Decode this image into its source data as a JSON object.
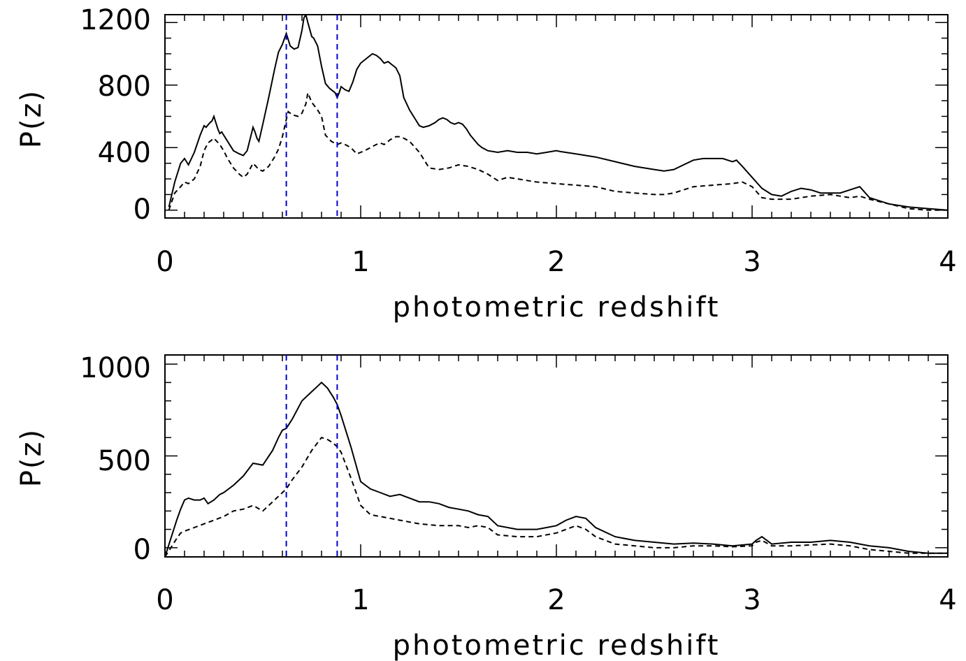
{
  "chart_data": [
    {
      "type": "line",
      "title": "",
      "xlabel": "photometric redshift",
      "ylabel": "P(z)",
      "xlim": [
        0,
        4
      ],
      "ylim": [
        -50,
        1250
      ],
      "xticks": [
        "0",
        "1",
        "2",
        "3",
        "4"
      ],
      "yticks": [
        "0",
        "400",
        "800",
        "1200"
      ],
      "vlines": [
        0.62,
        0.88
      ],
      "vline_color": "#0000cc",
      "series": [
        {
          "name": "solid",
          "style": "solid",
          "x": [
            0.02,
            0.05,
            0.08,
            0.1,
            0.12,
            0.15,
            0.18,
            0.2,
            0.21,
            0.23,
            0.24,
            0.25,
            0.26,
            0.27,
            0.28,
            0.29,
            0.3,
            0.32,
            0.35,
            0.38,
            0.4,
            0.42,
            0.44,
            0.45,
            0.46,
            0.47,
            0.48,
            0.5,
            0.53,
            0.56,
            0.58,
            0.6,
            0.62,
            0.63,
            0.64,
            0.66,
            0.68,
            0.7,
            0.71,
            0.72,
            0.73,
            0.75,
            0.76,
            0.78,
            0.8,
            0.82,
            0.84,
            0.86,
            0.87,
            0.88,
            0.89,
            0.9,
            0.92,
            0.94,
            0.96,
            0.98,
            1.0,
            1.02,
            1.04,
            1.06,
            1.08,
            1.1,
            1.12,
            1.14,
            1.16,
            1.18,
            1.2,
            1.22,
            1.25,
            1.28,
            1.3,
            1.32,
            1.35,
            1.38,
            1.4,
            1.42,
            1.44,
            1.46,
            1.48,
            1.5,
            1.52,
            1.54,
            1.56,
            1.58,
            1.6,
            1.62,
            1.65,
            1.7,
            1.75,
            1.8,
            1.85,
            1.9,
            1.95,
            2.0,
            2.02,
            2.1,
            2.15,
            2.2,
            2.3,
            2.4,
            2.5,
            2.55,
            2.6,
            2.65,
            2.7,
            2.75,
            2.8,
            2.85,
            2.9,
            2.92,
            2.95,
            3.0,
            3.05,
            3.1,
            3.15,
            3.2,
            3.25,
            3.3,
            3.35,
            3.4,
            3.45,
            3.5,
            3.55,
            3.6,
            3.7,
            3.8,
            3.9,
            4.0
          ],
          "y": [
            20,
            180,
            300,
            330,
            290,
            370,
            480,
            540,
            530,
            560,
            570,
            600,
            560,
            520,
            490,
            500,
            480,
            440,
            380,
            360,
            350,
            380,
            480,
            530,
            500,
            460,
            440,
            550,
            720,
            900,
            1010,
            1060,
            1130,
            1090,
            1050,
            1030,
            1040,
            1150,
            1230,
            1250,
            1200,
            1110,
            1100,
            1050,
            920,
            810,
            780,
            760,
            750,
            720,
            750,
            790,
            770,
            760,
            820,
            900,
            940,
            960,
            980,
            1000,
            990,
            970,
            940,
            950,
            930,
            910,
            860,
            720,
            640,
            580,
            540,
            530,
            540,
            560,
            580,
            590,
            580,
            560,
            550,
            560,
            550,
            520,
            480,
            450,
            420,
            400,
            380,
            370,
            380,
            370,
            370,
            360,
            370,
            380,
            375,
            360,
            350,
            340,
            310,
            280,
            260,
            250,
            260,
            290,
            320,
            330,
            330,
            330,
            310,
            320,
            280,
            210,
            140,
            100,
            90,
            120,
            140,
            130,
            110,
            110,
            110,
            130,
            150,
            80,
            40,
            20,
            10,
            0
          ]
        },
        {
          "name": "dashed",
          "style": "dashed",
          "x": [
            0.02,
            0.05,
            0.08,
            0.1,
            0.12,
            0.15,
            0.18,
            0.2,
            0.22,
            0.25,
            0.28,
            0.3,
            0.32,
            0.35,
            0.38,
            0.4,
            0.42,
            0.45,
            0.48,
            0.5,
            0.53,
            0.56,
            0.58,
            0.6,
            0.62,
            0.63,
            0.65,
            0.68,
            0.7,
            0.72,
            0.73,
            0.75,
            0.78,
            0.8,
            0.82,
            0.85,
            0.88,
            0.9,
            0.92,
            0.95,
            0.98,
            1.0,
            1.02,
            1.05,
            1.08,
            1.1,
            1.12,
            1.15,
            1.18,
            1.2,
            1.22,
            1.25,
            1.3,
            1.35,
            1.4,
            1.45,
            1.5,
            1.55,
            1.6,
            1.65,
            1.7,
            1.75,
            1.8,
            1.85,
            1.9,
            2.0,
            2.1,
            2.2,
            2.3,
            2.4,
            2.5,
            2.55,
            2.6,
            2.7,
            2.8,
            2.9,
            2.95,
            3.0,
            3.05,
            3.1,
            3.2,
            3.3,
            3.4,
            3.5,
            3.55,
            3.6,
            3.7,
            3.8,
            3.9,
            4.0
          ],
          "y": [
            0,
            110,
            150,
            180,
            170,
            200,
            280,
            380,
            430,
            460,
            420,
            380,
            330,
            270,
            230,
            210,
            230,
            300,
            260,
            250,
            280,
            340,
            390,
            470,
            580,
            630,
            610,
            600,
            620,
            680,
            750,
            690,
            640,
            600,
            480,
            440,
            420,
            430,
            420,
            400,
            360,
            370,
            380,
            400,
            420,
            430,
            420,
            450,
            470,
            470,
            460,
            440,
            370,
            270,
            260,
            270,
            290,
            280,
            260,
            230,
            190,
            210,
            200,
            190,
            180,
            170,
            160,
            150,
            120,
            110,
            100,
            100,
            110,
            150,
            160,
            170,
            180,
            150,
            80,
            70,
            70,
            90,
            100,
            80,
            90,
            70,
            40,
            10,
            0,
            0
          ]
        }
      ]
    },
    {
      "type": "line",
      "title": "",
      "xlabel": "photometric redshift",
      "ylabel": "P(z)",
      "xlim": [
        0,
        4
      ],
      "ylim": [
        -50,
        1050
      ],
      "xticks": [
        "0",
        "1",
        "2",
        "3",
        "4"
      ],
      "yticks": [
        "0",
        "500",
        "1000"
      ],
      "vlines": [
        0.62,
        0.88
      ],
      "vline_color": "#0000cc",
      "series": [
        {
          "name": "solid",
          "style": "solid",
          "x": [
            0.0,
            0.03,
            0.06,
            0.08,
            0.1,
            0.12,
            0.15,
            0.18,
            0.2,
            0.22,
            0.25,
            0.28,
            0.3,
            0.35,
            0.4,
            0.45,
            0.5,
            0.55,
            0.58,
            0.6,
            0.62,
            0.65,
            0.7,
            0.75,
            0.78,
            0.8,
            0.83,
            0.86,
            0.88,
            0.9,
            0.95,
            1.0,
            1.05,
            1.1,
            1.15,
            1.2,
            1.25,
            1.3,
            1.35,
            1.4,
            1.45,
            1.5,
            1.55,
            1.6,
            1.65,
            1.7,
            1.8,
            1.9,
            1.95,
            2.0,
            2.05,
            2.1,
            2.15,
            2.2,
            2.3,
            2.4,
            2.5,
            2.6,
            2.7,
            2.8,
            2.9,
            3.0,
            3.02,
            3.05,
            3.1,
            3.2,
            3.3,
            3.4,
            3.5,
            3.55,
            3.6,
            3.7,
            3.8,
            3.9,
            4.0
          ],
          "y": [
            -50,
            50,
            150,
            210,
            260,
            270,
            260,
            260,
            270,
            240,
            260,
            290,
            300,
            340,
            390,
            460,
            450,
            530,
            600,
            640,
            650,
            700,
            800,
            850,
            880,
            900,
            870,
            820,
            780,
            720,
            550,
            360,
            320,
            300,
            280,
            290,
            270,
            250,
            250,
            240,
            220,
            210,
            200,
            180,
            170,
            120,
            100,
            100,
            110,
            120,
            150,
            170,
            160,
            110,
            60,
            40,
            30,
            20,
            25,
            20,
            10,
            20,
            40,
            60,
            20,
            30,
            30,
            40,
            30,
            20,
            10,
            0,
            -20,
            -30,
            -30
          ]
        },
        {
          "name": "dashed",
          "style": "dashed",
          "x": [
            0.0,
            0.03,
            0.06,
            0.08,
            0.1,
            0.15,
            0.2,
            0.25,
            0.3,
            0.35,
            0.4,
            0.45,
            0.5,
            0.55,
            0.6,
            0.62,
            0.65,
            0.7,
            0.75,
            0.8,
            0.83,
            0.86,
            0.88,
            0.9,
            0.95,
            1.0,
            1.05,
            1.1,
            1.15,
            1.2,
            1.3,
            1.4,
            1.5,
            1.55,
            1.6,
            1.65,
            1.7,
            1.8,
            1.9,
            2.0,
            2.05,
            2.1,
            2.15,
            2.2,
            2.3,
            2.4,
            2.5,
            2.6,
            2.7,
            2.8,
            2.9,
            3.0,
            3.02,
            3.05,
            3.1,
            3.2,
            3.3,
            3.4,
            3.5,
            3.55,
            3.6,
            3.7,
            3.8,
            3.9,
            4.0
          ],
          "y": [
            -50,
            0,
            50,
            80,
            90,
            110,
            130,
            150,
            170,
            200,
            210,
            230,
            200,
            250,
            300,
            320,
            370,
            440,
            530,
            600,
            590,
            570,
            550,
            520,
            380,
            230,
            180,
            170,
            160,
            150,
            130,
            120,
            120,
            110,
            120,
            110,
            70,
            60,
            60,
            80,
            100,
            120,
            100,
            60,
            20,
            10,
            0,
            0,
            10,
            10,
            5,
            10,
            30,
            40,
            10,
            10,
            15,
            20,
            10,
            0,
            -10,
            -20,
            -30,
            -30,
            -30
          ]
        }
      ]
    }
  ]
}
